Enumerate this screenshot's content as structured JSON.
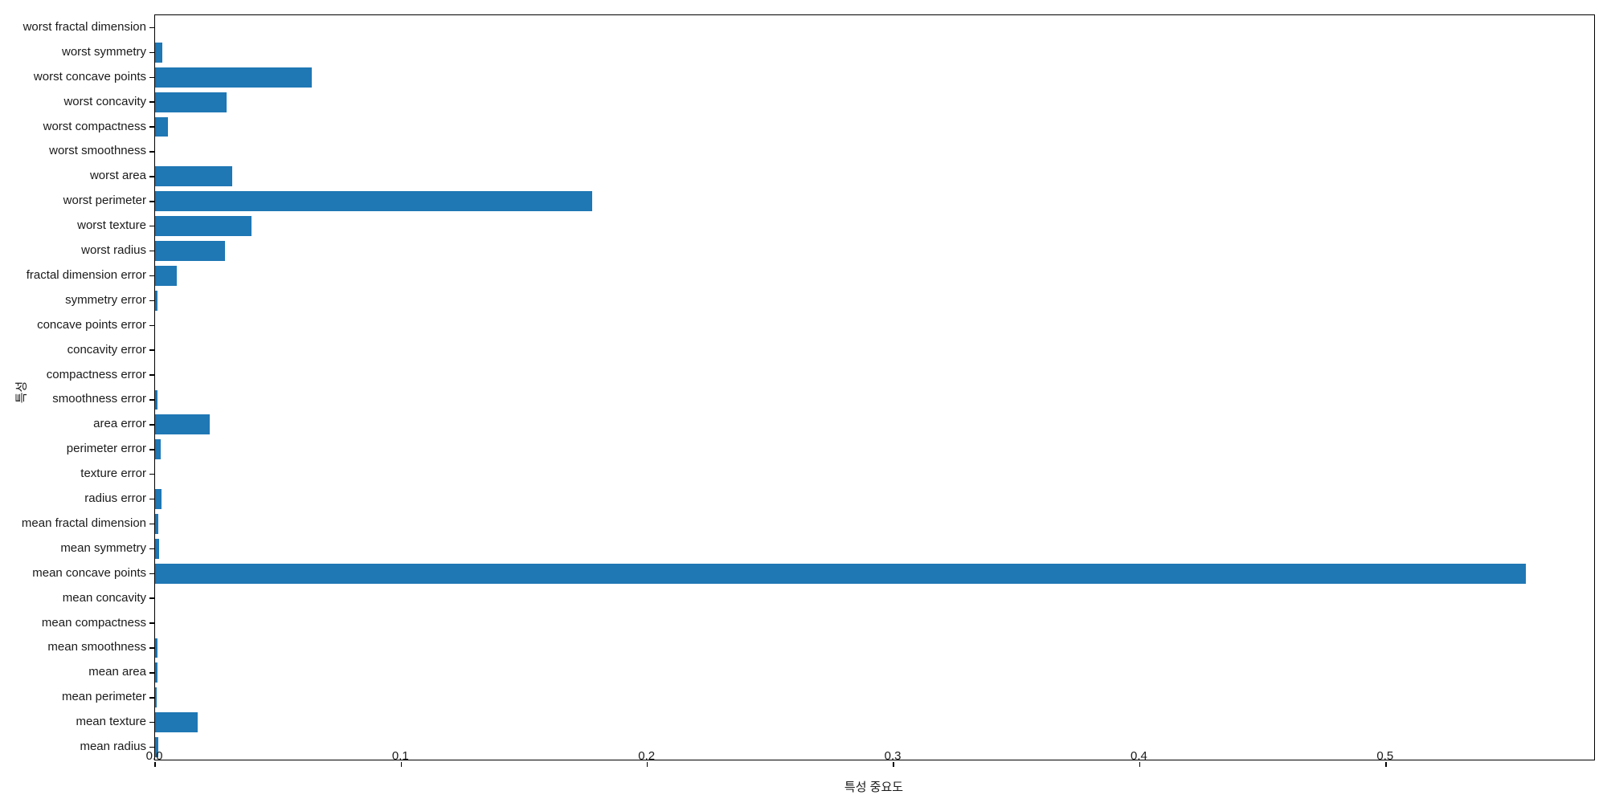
{
  "figure": {
    "background_color": "#ffffff",
    "text_color": "#1a1a1a"
  },
  "chart_data": {
    "type": "bar",
    "orientation": "horizontal",
    "title": "",
    "xlabel": "특성 중요도",
    "ylabel": "특성",
    "bar_color": "#1f77b4",
    "grid": false,
    "legend": null,
    "xlim": [
      0,
      0.5846
    ],
    "x_tick_labels": [
      "0.0",
      "0.1",
      "0.2",
      "0.3",
      "0.4",
      "0.5"
    ],
    "x_tick_values": [
      0.0,
      0.1,
      0.2,
      0.3,
      0.4,
      0.5
    ],
    "categories_top_to_bottom": [
      "worst fractal dimension",
      "worst symmetry",
      "worst concave points",
      "worst concavity",
      "worst compactness",
      "worst smoothness",
      "worst area",
      "worst perimeter",
      "worst texture",
      "worst radius",
      "fractal dimension error",
      "symmetry error",
      "concave points error",
      "concavity error",
      "compactness error",
      "smoothness error",
      "area error",
      "perimeter error",
      "texture error",
      "radius error",
      "mean fractal dimension",
      "mean symmetry",
      "mean concave points",
      "mean concavity",
      "mean compactness",
      "mean smoothness",
      "mean area",
      "mean perimeter",
      "mean texture",
      "mean radius"
    ],
    "values": [
      0.0,
      0.0028,
      0.0637,
      0.0292,
      0.0051,
      0.0,
      0.0312,
      0.1777,
      0.0393,
      0.0285,
      0.0089,
      0.0009,
      0.0,
      0.0,
      0.0,
      0.0009,
      0.0223,
      0.0022,
      0.0,
      0.0025,
      0.0013,
      0.0016,
      0.5568,
      0.0,
      0.0,
      0.0009,
      0.0009,
      0.0006,
      0.0172,
      0.0012
    ]
  }
}
